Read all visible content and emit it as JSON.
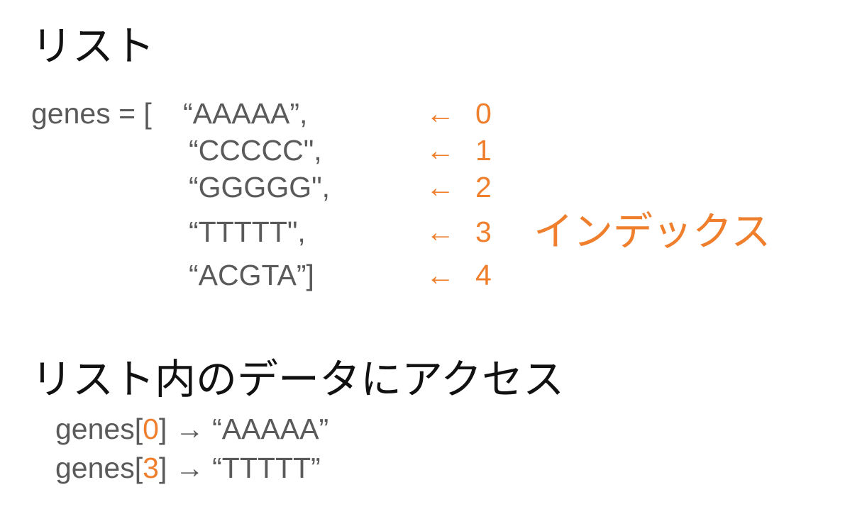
{
  "heading_list": "リスト",
  "list": {
    "prefix": "genes = [",
    "items": [
      {
        "value": "“AAAAA”,",
        "arrow": "←",
        "index": "0"
      },
      {
        "value": "“CCCCC\",",
        "arrow": "←",
        "index": "1"
      },
      {
        "value": "“GGGGG\",",
        "arrow": "←",
        "index": "2"
      },
      {
        "value": "“TTTTT\",",
        "arrow": "←",
        "index": "3"
      },
      {
        "value": "“ACGTA”]",
        "arrow": "←",
        "index": "4"
      }
    ],
    "index_label": "インデックス"
  },
  "heading_access": "リスト内のデータにアクセス",
  "access": [
    {
      "var": "genes",
      "open": "[",
      "index": "0",
      "close": "]",
      "arrow": "→",
      "result": "“AAAAA”"
    },
    {
      "var": "genes",
      "open": "[",
      "index": "3",
      "close": "]",
      "arrow": "→",
      "result": "“TTTTT”"
    }
  ],
  "colors": {
    "highlight": "#ef7f2c",
    "code": "#5a5a5a",
    "heading": "#111111"
  }
}
